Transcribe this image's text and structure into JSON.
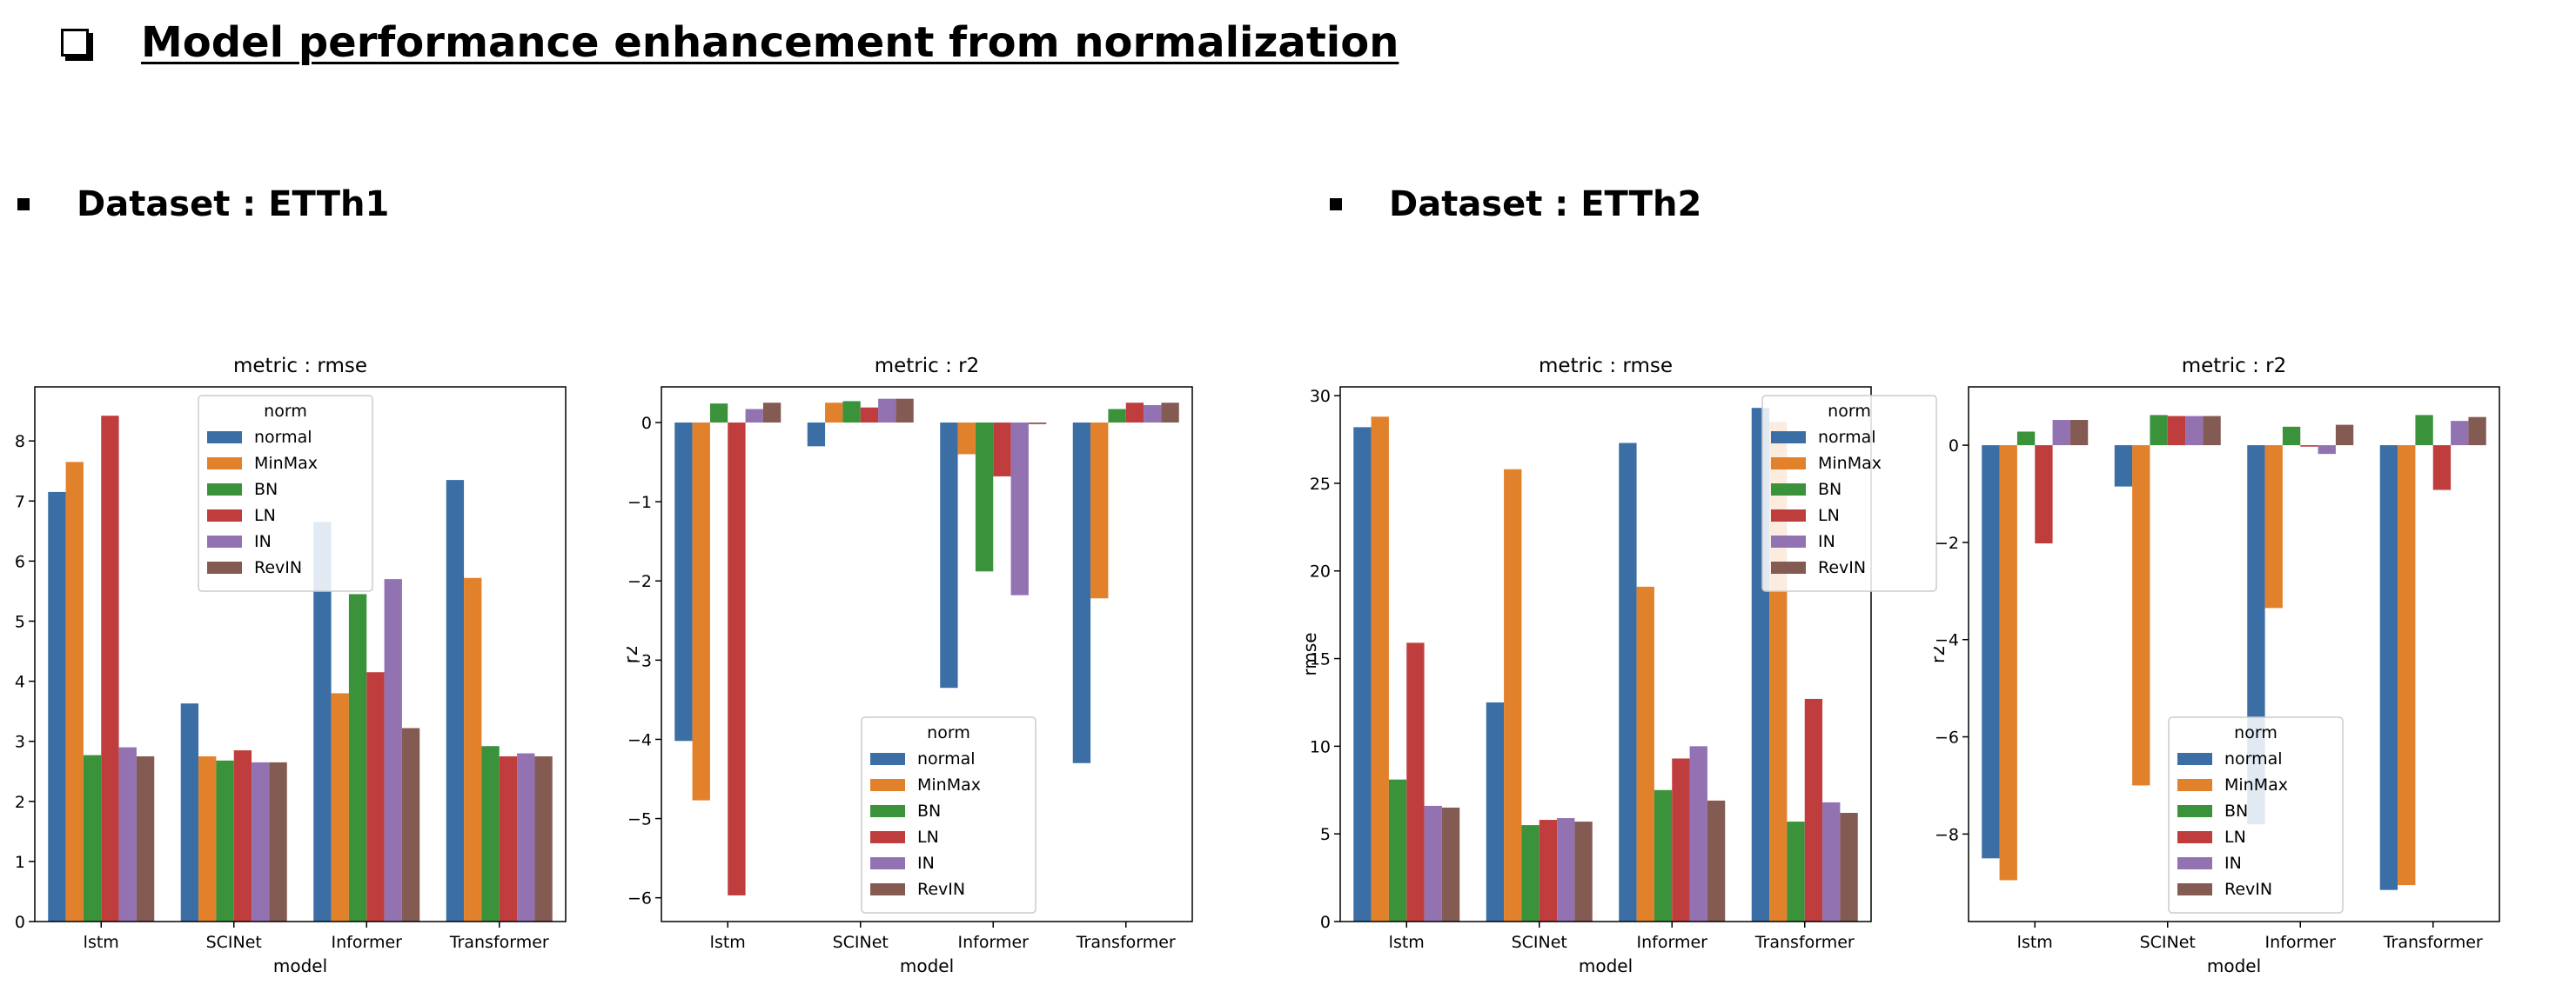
{
  "page": {
    "title": "Model performance enhancement from normalization",
    "sections": [
      {
        "label": "Dataset : ETTh1"
      },
      {
        "label": "Dataset : ETTh2"
      }
    ]
  },
  "colors": {
    "normal": "#3a6ea5",
    "MinMax": "#e1812c",
    "BN": "#3a923a",
    "LN": "#c03d3e",
    "IN": "#9372b2",
    "RevIN": "#845b53"
  },
  "chart_data": [
    {
      "type": "bar",
      "title": "metric : rmse",
      "xlabel": "model",
      "ylabel": "",
      "ylim": [
        0,
        8.9
      ],
      "yticks": [
        0,
        1,
        2,
        3,
        4,
        5,
        6,
        7,
        8
      ],
      "categories": [
        "lstm",
        "SCINet",
        "Informer",
        "Transformer"
      ],
      "legend": {
        "title": "norm",
        "placement": "upper-center"
      },
      "series": [
        {
          "name": "normal",
          "values": [
            7.15,
            3.63,
            6.65,
            7.35
          ]
        },
        {
          "name": "MinMax",
          "values": [
            7.65,
            2.75,
            3.8,
            5.72
          ]
        },
        {
          "name": "BN",
          "values": [
            2.77,
            2.68,
            5.45,
            2.92
          ]
        },
        {
          "name": "LN",
          "values": [
            8.42,
            2.85,
            4.15,
            2.75
          ]
        },
        {
          "name": "IN",
          "values": [
            2.9,
            2.65,
            5.7,
            2.8
          ]
        },
        {
          "name": "RevIN",
          "values": [
            2.75,
            2.65,
            3.22,
            2.75
          ]
        }
      ]
    },
    {
      "type": "bar",
      "title": "metric : r2",
      "xlabel": "model",
      "ylabel": "r2",
      "ylim": [
        -6.3,
        0.45
      ],
      "yticks": [
        -6,
        -5,
        -4,
        -3,
        -2,
        -1,
        0
      ],
      "categories": [
        "lstm",
        "SCINet",
        "Informer",
        "Transformer"
      ],
      "legend": {
        "title": "norm",
        "placement": "lower-center"
      },
      "series": [
        {
          "name": "normal",
          "values": [
            -4.02,
            -0.3,
            -3.35,
            -4.3
          ]
        },
        {
          "name": "MinMax",
          "values": [
            -4.77,
            0.25,
            -0.4,
            -2.22
          ]
        },
        {
          "name": "BN",
          "values": [
            0.24,
            0.27,
            -1.88,
            0.17
          ]
        },
        {
          "name": "LN",
          "values": [
            -5.97,
            0.19,
            -0.68,
            0.25
          ]
        },
        {
          "name": "IN",
          "values": [
            0.17,
            0.3,
            -2.18,
            0.22
          ]
        },
        {
          "name": "RevIN",
          "values": [
            0.25,
            0.3,
            -0.02,
            0.25
          ]
        }
      ]
    },
    {
      "type": "bar",
      "title": "metric : rmse",
      "xlabel": "model",
      "ylabel": "rmse",
      "ylim": [
        0,
        30.5
      ],
      "yticks": [
        0,
        5,
        10,
        15,
        20,
        25,
        30
      ],
      "categories": [
        "lstm",
        "SCINet",
        "Informer",
        "Transformer"
      ],
      "legend": {
        "title": "norm",
        "placement": "upper-right"
      },
      "series": [
        {
          "name": "normal",
          "values": [
            28.2,
            12.5,
            27.3,
            29.3
          ]
        },
        {
          "name": "MinMax",
          "values": [
            28.8,
            25.8,
            19.1,
            28.5
          ]
        },
        {
          "name": "BN",
          "values": [
            8.1,
            5.5,
            7.5,
            5.7
          ]
        },
        {
          "name": "LN",
          "values": [
            15.9,
            5.8,
            9.3,
            12.7
          ]
        },
        {
          "name": "IN",
          "values": [
            6.6,
            5.9,
            10.0,
            6.8
          ]
        },
        {
          "name": "RevIN",
          "values": [
            6.5,
            5.7,
            6.9,
            6.2
          ]
        }
      ]
    },
    {
      "type": "bar",
      "title": "metric : r2",
      "xlabel": "model",
      "ylabel": "r2",
      "ylim": [
        -9.8,
        1.2
      ],
      "yticks": [
        -8,
        -6,
        -4,
        -2,
        0
      ],
      "categories": [
        "lstm",
        "SCINet",
        "Informer",
        "Transformer"
      ],
      "legend": {
        "title": "norm",
        "placement": "lower-center"
      },
      "series": [
        {
          "name": "normal",
          "values": [
            -8.5,
            -0.85,
            -7.8,
            -9.15
          ]
        },
        {
          "name": "MinMax",
          "values": [
            -8.95,
            -7.0,
            -3.35,
            -9.05
          ]
        },
        {
          "name": "BN",
          "values": [
            0.28,
            0.62,
            0.38,
            0.62
          ]
        },
        {
          "name": "LN",
          "values": [
            -2.02,
            0.6,
            -0.03,
            -0.92
          ]
        },
        {
          "name": "IN",
          "values": [
            0.52,
            0.6,
            -0.18,
            0.5
          ]
        },
        {
          "name": "RevIN",
          "values": [
            0.52,
            0.6,
            0.42,
            0.58
          ]
        }
      ]
    }
  ]
}
